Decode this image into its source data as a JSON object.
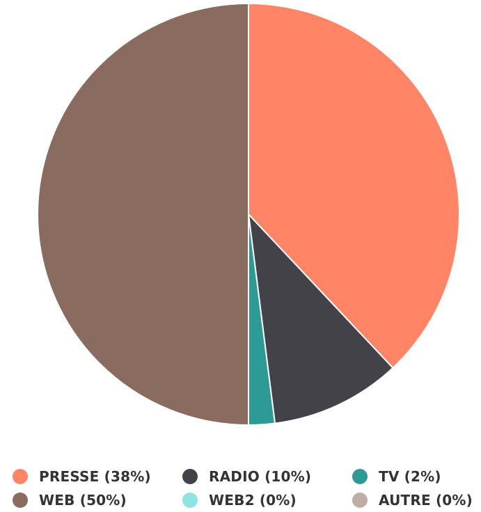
{
  "chart_data": {
    "type": "pie",
    "title": "",
    "slices": [
      {
        "label": "PRESSE (38%)",
        "name": "PRESSE",
        "value": 38,
        "color": "#ff8566"
      },
      {
        "label": "RADIO (10%)",
        "name": "RADIO",
        "value": 10,
        "color": "#434248"
      },
      {
        "label": "TV (2%)",
        "name": "TV",
        "value": 2,
        "color": "#2e9a95"
      },
      {
        "label": "WEB (50%)",
        "name": "WEB",
        "value": 50,
        "color": "#896b5f"
      },
      {
        "label": "WEB2 (0%)",
        "name": "WEB2",
        "value": 0,
        "color": "#8fe3e1"
      },
      {
        "label": "AUTRE (0%)",
        "name": "AUTRE",
        "value": 0,
        "color": "#bfaea6"
      }
    ],
    "legend_position": "bottom",
    "start_angle": "top",
    "direction": "clockwise"
  }
}
